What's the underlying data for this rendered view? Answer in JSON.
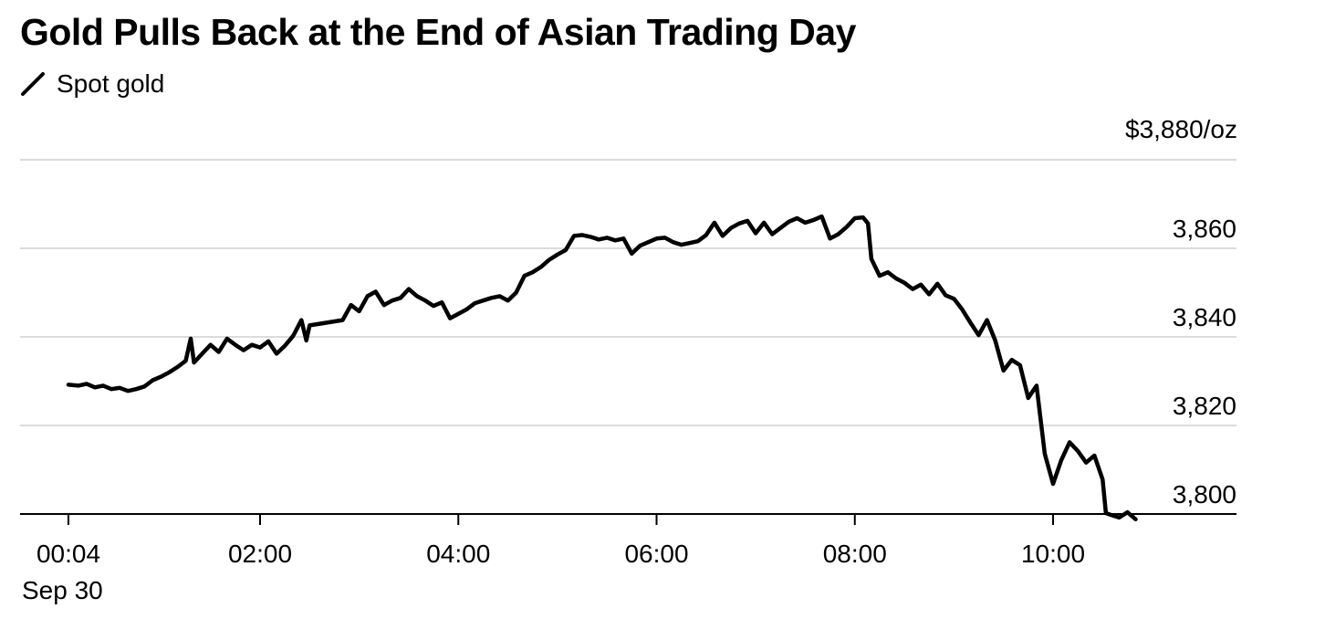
{
  "chart_data": {
    "type": "line",
    "title": "Gold Pulls Back at the End of Asian Trading Day",
    "series": [
      {
        "name": "Spot gold",
        "color": "#000000",
        "points": [
          [
            "00:04",
            3829.2
          ],
          [
            "00:10",
            3829.0
          ],
          [
            "00:15",
            3829.4
          ],
          [
            "00:20",
            3828.6
          ],
          [
            "00:25",
            3829.0
          ],
          [
            "00:30",
            3828.2
          ],
          [
            "00:35",
            3828.5
          ],
          [
            "00:40",
            3827.8
          ],
          [
            "00:45",
            3828.2
          ],
          [
            "00:50",
            3828.8
          ],
          [
            "00:55",
            3830.2
          ],
          [
            "01:00",
            3831.0
          ],
          [
            "01:05",
            3832.0
          ],
          [
            "01:10",
            3833.2
          ],
          [
            "01:15",
            3834.6
          ],
          [
            "01:18",
            3839.6
          ],
          [
            "01:20",
            3834.2
          ],
          [
            "01:25",
            3836.2
          ],
          [
            "01:30",
            3838.2
          ],
          [
            "01:35",
            3836.6
          ],
          [
            "01:40",
            3839.6
          ],
          [
            "01:45",
            3838.2
          ],
          [
            "01:50",
            3837.0
          ],
          [
            "01:55",
            3838.2
          ],
          [
            "02:00",
            3837.6
          ],
          [
            "02:05",
            3839.0
          ],
          [
            "02:10",
            3836.2
          ],
          [
            "02:15",
            3838.0
          ],
          [
            "02:20",
            3840.2
          ],
          [
            "02:25",
            3843.8
          ],
          [
            "02:28",
            3839.2
          ],
          [
            "02:30",
            3842.6
          ],
          [
            "02:40",
            3843.2
          ],
          [
            "02:50",
            3843.8
          ],
          [
            "02:55",
            3847.2
          ],
          [
            "03:00",
            3845.8
          ],
          [
            "03:05",
            3849.2
          ],
          [
            "03:10",
            3850.2
          ],
          [
            "03:15",
            3847.2
          ],
          [
            "03:20",
            3848.2
          ],
          [
            "03:25",
            3848.8
          ],
          [
            "03:30",
            3850.8
          ],
          [
            "03:35",
            3849.2
          ],
          [
            "03:40",
            3848.2
          ],
          [
            "03:45",
            3847.0
          ],
          [
            "03:50",
            3847.8
          ],
          [
            "03:55",
            3844.2
          ],
          [
            "04:00",
            3845.2
          ],
          [
            "04:05",
            3846.2
          ],
          [
            "04:10",
            3847.6
          ],
          [
            "04:15",
            3848.2
          ],
          [
            "04:20",
            3848.8
          ],
          [
            "04:25",
            3849.2
          ],
          [
            "04:30",
            3848.2
          ],
          [
            "04:35",
            3850.0
          ],
          [
            "04:40",
            3853.8
          ],
          [
            "04:45",
            3854.6
          ],
          [
            "04:50",
            3855.8
          ],
          [
            "04:55",
            3857.4
          ],
          [
            "05:00",
            3858.6
          ],
          [
            "05:05",
            3859.6
          ],
          [
            "05:10",
            3862.8
          ],
          [
            "05:15",
            3863.0
          ],
          [
            "05:20",
            3862.6
          ],
          [
            "05:25",
            3862.0
          ],
          [
            "05:30",
            3862.4
          ],
          [
            "05:35",
            3861.8
          ],
          [
            "05:40",
            3862.2
          ],
          [
            "05:45",
            3858.8
          ],
          [
            "05:50",
            3860.6
          ],
          [
            "05:55",
            3861.4
          ],
          [
            "06:00",
            3862.2
          ],
          [
            "06:05",
            3862.4
          ],
          [
            "06:10",
            3861.4
          ],
          [
            "06:15",
            3860.8
          ],
          [
            "06:20",
            3861.2
          ],
          [
            "06:25",
            3861.6
          ],
          [
            "06:30",
            3863.0
          ],
          [
            "06:35",
            3865.8
          ],
          [
            "06:40",
            3862.8
          ],
          [
            "06:45",
            3864.6
          ],
          [
            "06:50",
            3865.6
          ],
          [
            "06:55",
            3866.2
          ],
          [
            "07:00",
            3863.4
          ],
          [
            "07:05",
            3865.8
          ],
          [
            "07:10",
            3863.2
          ],
          [
            "07:15",
            3864.6
          ],
          [
            "07:20",
            3866.0
          ],
          [
            "07:25",
            3866.8
          ],
          [
            "07:30",
            3865.8
          ],
          [
            "07:35",
            3866.4
          ],
          [
            "07:40",
            3867.2
          ],
          [
            "07:45",
            3862.2
          ],
          [
            "07:50",
            3863.2
          ],
          [
            "07:55",
            3864.8
          ],
          [
            "08:00",
            3866.8
          ],
          [
            "08:05",
            3867.0
          ],
          [
            "08:08",
            3865.6
          ],
          [
            "08:10",
            3857.6
          ],
          [
            "08:15",
            3853.8
          ],
          [
            "08:20",
            3854.6
          ],
          [
            "08:25",
            3853.2
          ],
          [
            "08:30",
            3852.2
          ],
          [
            "08:35",
            3850.8
          ],
          [
            "08:40",
            3851.8
          ],
          [
            "08:45",
            3849.6
          ],
          [
            "08:50",
            3852.0
          ],
          [
            "08:55",
            3849.4
          ],
          [
            "09:00",
            3848.6
          ],
          [
            "09:05",
            3846.2
          ],
          [
            "09:10",
            3843.2
          ],
          [
            "09:15",
            3840.4
          ],
          [
            "09:20",
            3843.8
          ],
          [
            "09:25",
            3839.2
          ],
          [
            "09:30",
            3832.4
          ],
          [
            "09:35",
            3834.8
          ],
          [
            "09:40",
            3833.6
          ],
          [
            "09:45",
            3826.2
          ],
          [
            "09:50",
            3829.0
          ],
          [
            "09:55",
            3813.6
          ],
          [
            "10:00",
            3806.8
          ],
          [
            "10:05",
            3812.2
          ],
          [
            "10:10",
            3816.2
          ],
          [
            "10:15",
            3814.2
          ],
          [
            "10:20",
            3811.6
          ],
          [
            "10:25",
            3813.2
          ],
          [
            "10:30",
            3807.8
          ],
          [
            "10:32",
            3800.2
          ],
          [
            "10:35",
            3799.8
          ],
          [
            "10:40",
            3799.2
          ],
          [
            "10:45",
            3800.4
          ],
          [
            "10:50",
            3798.8
          ]
        ]
      }
    ],
    "y_unit_label": "$3,880/oz",
    "yticks": [
      {
        "value": 3800,
        "label": "3,800"
      },
      {
        "value": 3820,
        "label": "3,820"
      },
      {
        "value": 3840,
        "label": "3,840"
      },
      {
        "value": 3860,
        "label": "3,860"
      },
      {
        "value": 3880,
        "label": "3,880"
      }
    ],
    "xticks": [
      {
        "time": "00:04",
        "label": "00:04",
        "sublabel": "Sep 30"
      },
      {
        "time": "02:00",
        "label": "02:00"
      },
      {
        "time": "04:00",
        "label": "04:00"
      },
      {
        "time": "06:00",
        "label": "06:00"
      },
      {
        "time": "08:00",
        "label": "08:00"
      },
      {
        "time": "10:00",
        "label": "10:00"
      }
    ],
    "x_range": [
      "00:04",
      "11:00"
    ],
    "ylim": [
      3800,
      3880
    ],
    "grid": "horizontal",
    "legend": "top-left"
  }
}
